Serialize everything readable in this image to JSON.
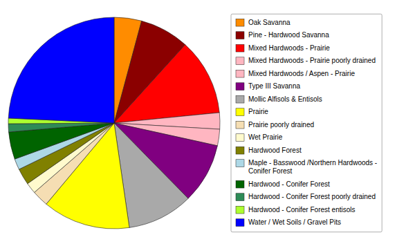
{
  "chart_data": {
    "type": "pie",
    "categories": [
      "Oak Savanna",
      "Pine - Hardwood Savanna",
      "Mixed Hardwoods - Prairie",
      "Mixed Hardwoods - Prairie poorly drained",
      "Mixed Hardwoods / Aspen - Prairie",
      "Type III Savanna",
      "Mollic Alfisols & Entisols",
      "Prairie",
      "Prairie poorly drained",
      "Wet Prairie",
      "Hardwood Forest",
      "Maple - Basswood /Northern Hardwoods -\nConifer Forest",
      "Hardwood - Conifer Forest",
      "Hardwood - Conifer Forest poorly drained",
      "Hardwood - Conifer Forest entisols",
      "Water / Wet Soils / Gravel Pits"
    ],
    "values": [
      5,
      9,
      14,
      3,
      3,
      11,
      12,
      16,
      3,
      2,
      3,
      2,
      5,
      1.5,
      1,
      29
    ],
    "colors": [
      "#FF8C00",
      "#8B0000",
      "#FF0000",
      "#FFB6C1",
      "#FFB6C1",
      "#800080",
      "#A9A9A9",
      "#FFFF00",
      "#F5DEB3",
      "#FFFACD",
      "#808000",
      "#ADD8E6",
      "#006400",
      "#2E8B57",
      "#ADFF2F",
      "#0000FF"
    ],
    "legend": "right"
  }
}
